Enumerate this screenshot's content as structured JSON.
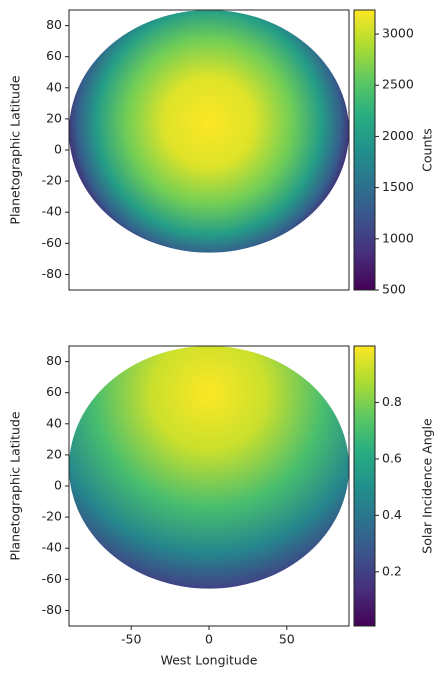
{
  "chart_data": [
    {
      "type": "image",
      "ylabel": "Planetographic Latitude",
      "xlim": [
        -90,
        90
      ],
      "ylim": [
        -90,
        90
      ],
      "yticks": [
        80,
        60,
        40,
        20,
        0,
        -20,
        -40,
        -60,
        -80
      ],
      "colorbar_label": "Counts",
      "clim": [
        500,
        3235
      ],
      "cticks": [
        500,
        1000,
        1500,
        2000,
        2500,
        3000
      ],
      "colormap": "viridis"
    },
    {
      "type": "image",
      "ylabel": "Planetographic Latitude",
      "xlabel": "West Longitude",
      "xlim": [
        -90,
        90
      ],
      "ylim": [
        -90,
        90
      ],
      "xticks": [
        -50,
        0,
        50
      ],
      "yticks": [
        80,
        60,
        40,
        20,
        0,
        -20,
        -40,
        -60,
        -80
      ],
      "colorbar_label": "Solar Incidence Angle",
      "clim": [
        0.008,
        1.0
      ],
      "cticks": [
        0.2,
        0.4,
        0.6,
        0.8
      ],
      "colormap": "viridis"
    }
  ]
}
